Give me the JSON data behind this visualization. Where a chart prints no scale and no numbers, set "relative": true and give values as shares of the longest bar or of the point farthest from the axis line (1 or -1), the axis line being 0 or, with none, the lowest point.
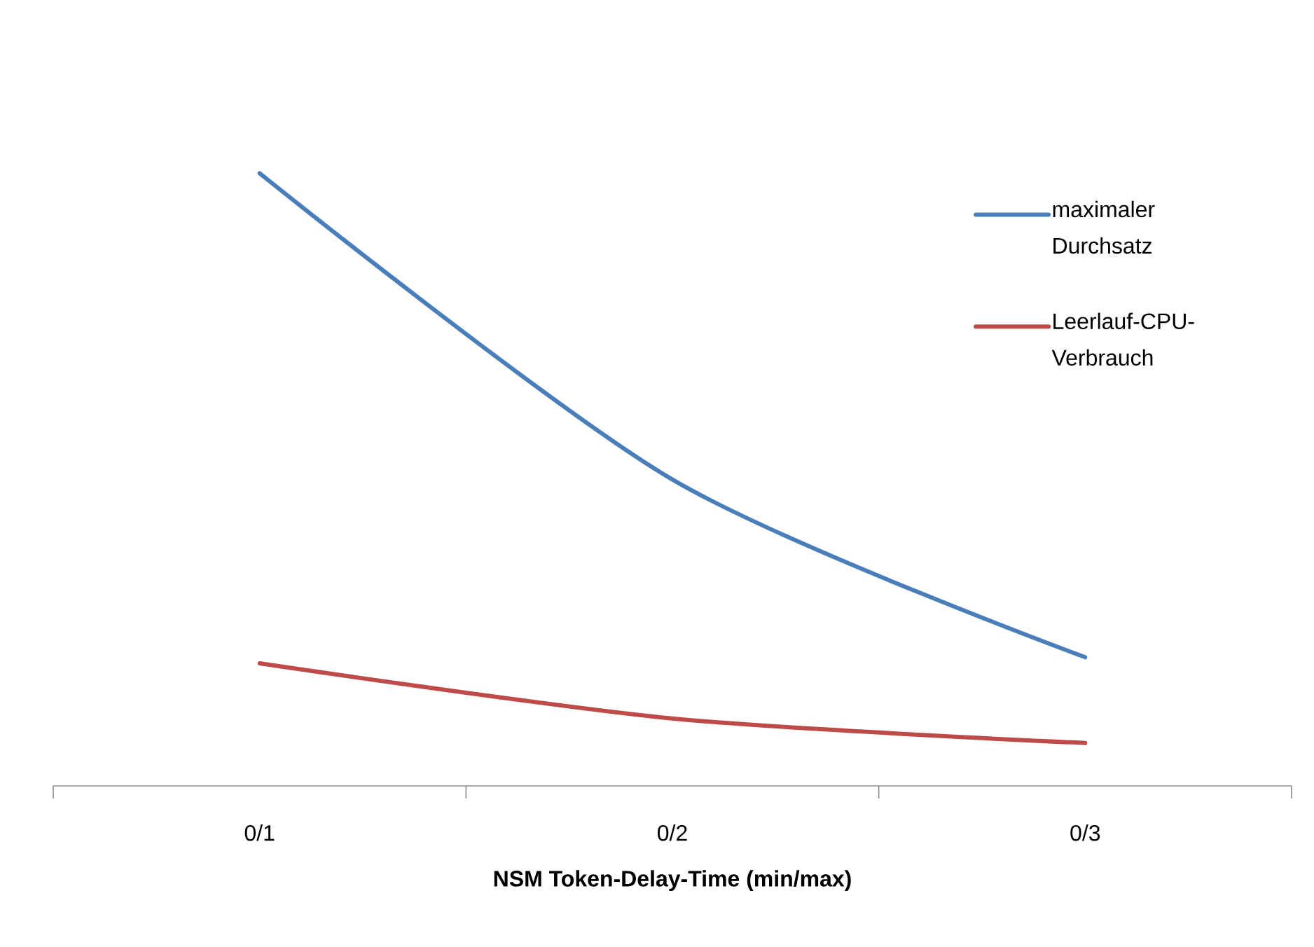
{
  "chart_data": {
    "type": "line",
    "relative": true,
    "xlabel": "NSM Token-Delay-Time (min/max)",
    "categories": [
      "0/1",
      "0/2",
      "0/3"
    ],
    "series": [
      {
        "name": "maximaler Durchsatz",
        "color": "#4a7ebb",
        "values": [
          1,
          0.5,
          0.21
        ]
      },
      {
        "name": "Leerlauf-CPU-Verbrauch",
        "color": "#be4b48",
        "values": [
          0.2,
          0.11,
          0.07
        ]
      }
    ],
    "legend": "right",
    "marker": "none",
    "line_style": "solid"
  }
}
